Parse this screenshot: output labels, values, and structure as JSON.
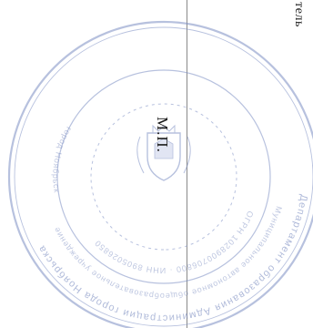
{
  "document": {
    "corner_fragment": "тель",
    "stamp_label": "М.П.",
    "stamp": {
      "outer_ring_text": "Департамент образования Администрации города Ноябрьска",
      "inner_ring_text": "Муниципальное автономное общеобразовательное учреждение",
      "center_ring_text": "ОГРН 1028900706800 · ИНН 8905026850",
      "bottom_text": "город Ноябрьск",
      "emblem": "coat-of-arms-icon",
      "ink_color": "#7d8fc4"
    }
  }
}
